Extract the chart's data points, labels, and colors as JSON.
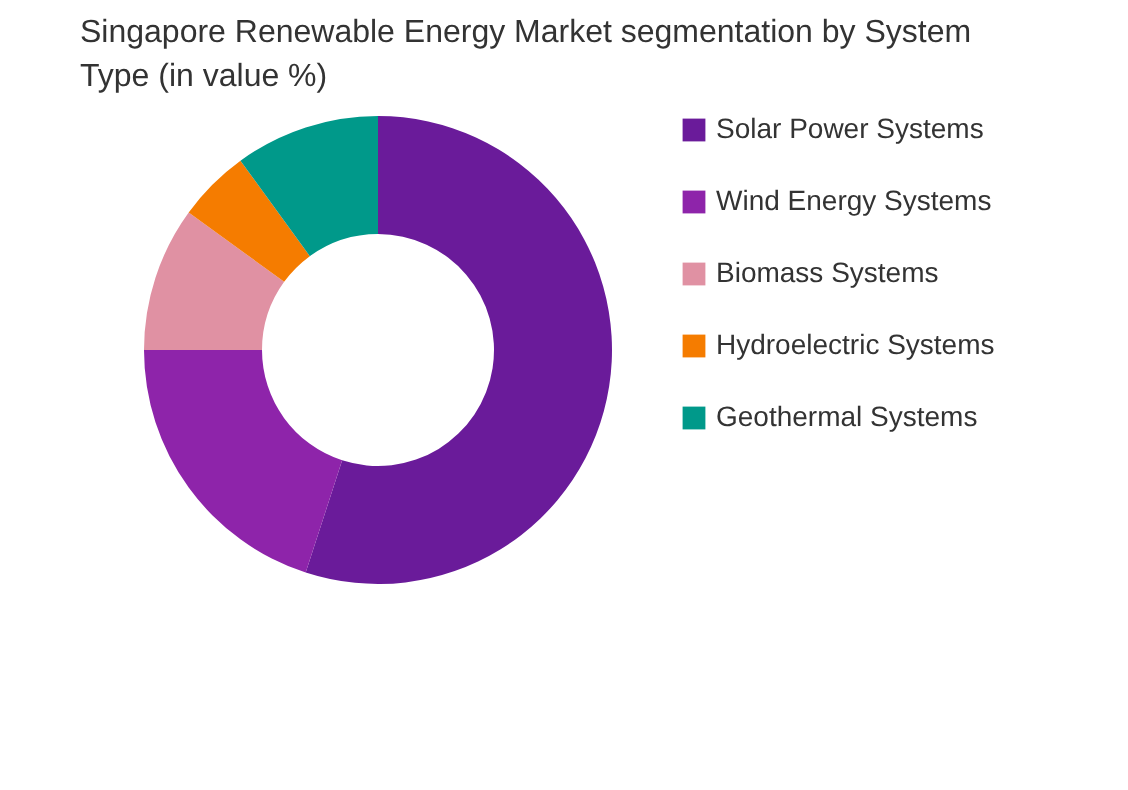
{
  "chart_data": {
    "type": "donut",
    "title": "Singapore Renewable Energy Market segmentation by System Type (in value %)",
    "categories": [
      "Solar Power Systems",
      "Wind Energy Systems",
      "Biomass Systems",
      "Hydroelectric Systems",
      "Geothermal Systems"
    ],
    "values": [
      55,
      20,
      10,
      5,
      10
    ],
    "colors": [
      "#6a1b9a",
      "#8e24aa",
      "#e091a3",
      "#f57c00",
      "#00998a"
    ],
    "legend": "right"
  }
}
